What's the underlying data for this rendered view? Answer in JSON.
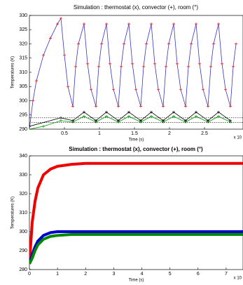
{
  "chart_data": [
    {
      "type": "line",
      "title": "Simulation : thermostat (x), convector (+), room (°)",
      "x_label": "Time (s)",
      "y_label": "Temperatures (K)",
      "x_exponent": "x 10",
      "xlim": [
        0,
        3.05
      ],
      "ylim": [
        290,
        330
      ],
      "xticks": [
        0.5,
        1,
        1.5,
        2,
        2.5
      ],
      "yticks": [
        290,
        295,
        300,
        305,
        310,
        315,
        320,
        325,
        330
      ],
      "hlines": [
        294,
        292.3
      ],
      "grid": false,
      "series": [
        {
          "color": "#3333cc",
          "marker_color": "#ff0000",
          "x": [
            0,
            0.05,
            0.1,
            0.2,
            0.3,
            0.4,
            0.45,
            0.5,
            0.55,
            0.62,
            0.66,
            0.7,
            0.78,
            0.83,
            0.88,
            0.95,
            0.99,
            1.03,
            1.1,
            1.15,
            1.2,
            1.27,
            1.31,
            1.35,
            1.42,
            1.47,
            1.52,
            1.59,
            1.63,
            1.67,
            1.74,
            1.79,
            1.84,
            1.91,
            1.95,
            1.99,
            2.06,
            2.11,
            2.16,
            2.23,
            2.27,
            2.31,
            2.38,
            2.43,
            2.48,
            2.55,
            2.59,
            2.63,
            2.7,
            2.75,
            2.8,
            2.87,
            2.91,
            2.95
          ],
          "values": [
            290,
            300,
            307,
            316,
            322,
            327,
            329,
            316,
            305,
            298,
            312,
            320,
            327,
            313,
            304,
            298,
            312,
            320,
            327,
            313,
            304,
            298,
            312,
            320,
            327,
            313,
            304,
            298,
            312,
            320,
            327,
            313,
            304,
            298,
            312,
            320,
            327,
            313,
            304,
            298,
            312,
            320,
            327,
            313,
            304,
            298,
            312,
            320,
            327,
            313,
            304,
            298,
            312,
            320
          ]
        },
        {
          "color": "#009900",
          "marker_color": "#009900",
          "x": [
            0,
            0.2,
            0.45,
            0.62,
            0.78,
            0.95,
            1.1,
            1.27,
            1.42,
            1.59,
            1.74,
            1.91,
            2.06,
            2.23,
            2.38,
            2.55,
            2.7,
            2.87
          ],
          "values": [
            290,
            291,
            293,
            292.5,
            294.5,
            292.5,
            294.5,
            292.5,
            294.5,
            292.5,
            294.5,
            292.5,
            294.5,
            292.5,
            294.5,
            292.5,
            294.5,
            292.5
          ]
        },
        {
          "color": "#000000",
          "marker_color": "#000000",
          "x": [
            0,
            0.45,
            0.62,
            0.78,
            0.95,
            1.1,
            1.27,
            1.42,
            1.59,
            1.74,
            1.91,
            2.06,
            2.23,
            2.38,
            2.55,
            2.7,
            2.87
          ],
          "values": [
            291,
            294,
            293,
            296,
            293,
            296,
            293,
            296,
            293,
            296,
            293,
            296,
            293,
            296,
            293,
            296,
            293
          ]
        }
      ]
    },
    {
      "type": "line",
      "title": "Simulation : thermostat (x), convector (+), room (°)",
      "x_label": "Time (s)",
      "y_label": "Temperatures (K)",
      "x_exponent": "x 10",
      "xlim": [
        0,
        7.6
      ],
      "ylim": [
        280,
        340
      ],
      "xticks": [
        0,
        1,
        2,
        3,
        4,
        5,
        6,
        7
      ],
      "yticks": [
        280,
        290,
        300,
        310,
        320,
        330,
        340
      ],
      "grid": false,
      "series": [
        {
          "color": "#ee0000",
          "marker_color": "#ee0000",
          "x": [
            0,
            0.1,
            0.2,
            0.3,
            0.5,
            0.75,
            1,
            1.5,
            2,
            3,
            4,
            5,
            6,
            7,
            7.6
          ],
          "values": [
            283,
            305,
            316,
            323,
            330,
            333,
            334.5,
            335.5,
            336,
            336,
            336,
            336,
            336,
            336,
            336
          ]
        },
        {
          "color": "#0000cc",
          "marker_color": "#0000cc",
          "x": [
            0,
            0.1,
            0.2,
            0.3,
            0.5,
            0.75,
            1,
            1.5,
            2,
            3,
            4,
            5,
            6,
            7,
            7.6
          ],
          "values": [
            283,
            288,
            292,
            295,
            298,
            299.5,
            300,
            300,
            300,
            300,
            300,
            300,
            300,
            300,
            300
          ]
        },
        {
          "color": "#008800",
          "marker_color": "#008800",
          "x": [
            0,
            0.1,
            0.2,
            0.3,
            0.5,
            0.75,
            1,
            1.5,
            2,
            3,
            4,
            5,
            6,
            7,
            7.6
          ],
          "values": [
            283,
            286,
            290,
            293,
            296,
            297.5,
            298,
            298.5,
            298.5,
            298.5,
            298.5,
            298.5,
            298.5,
            298.5,
            298.5
          ]
        }
      ]
    }
  ]
}
